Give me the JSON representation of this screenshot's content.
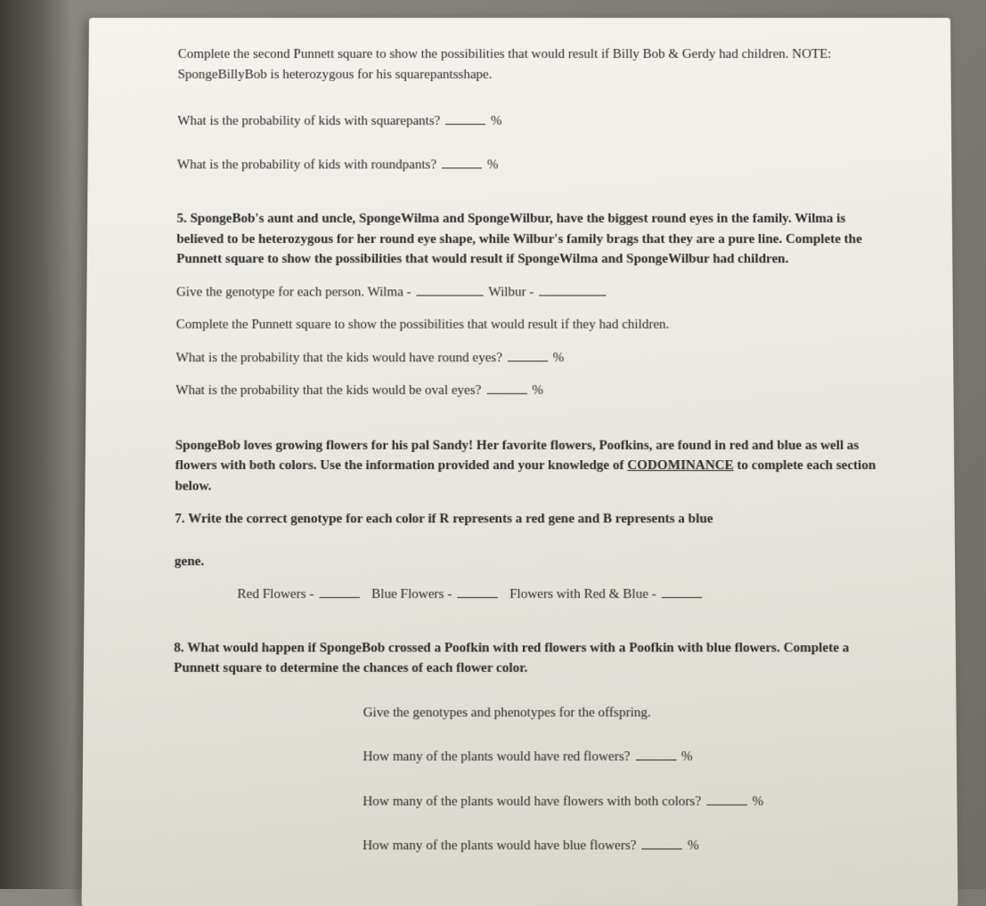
{
  "intro": {
    "text": "Complete the second Punnett square to show the possibilities that would result if Billy Bob & Gerdy had children. NOTE: SpongeBillyBob is heterozygous for his squarepantsshape."
  },
  "q_squarepants": {
    "text": "What is the probability of kids with squarepants?",
    "suffix": "%"
  },
  "q_roundpants": {
    "text": "What is the probability of kids with roundpants?",
    "suffix": "%"
  },
  "q5": {
    "text": "5. SpongeBob's aunt and uncle, SpongeWilma and SpongeWilbur, have the biggest round eyes in the family. Wilma is believed to be heterozygous for her round eye shape, while Wilbur's family brags that they are a pure line. Complete the Punnett square to show the possibilities that would result if SpongeWilma and SpongeWilbur had children."
  },
  "genotype": {
    "prefix": "Give the genotype for each person. Wilma -",
    "mid": "Wilbur -"
  },
  "complete_punnett": {
    "text": "Complete the Punnett square to show the possibilities that would result if they had children."
  },
  "q_roundeyes": {
    "text": "What is the probability that the kids would have round eyes?",
    "suffix": "%"
  },
  "q_ovaleyes": {
    "text": "What is the probability that the kids would be oval eyes?",
    "suffix": "%"
  },
  "codominance_intro": {
    "part1": "SpongeBob loves growing flowers for his pal Sandy! Her favorite flowers, Poofkins, are found in red and blue as well as flowers with both colors. Use the information provided and your knowledge of ",
    "underlined": "CODOMINANCE",
    "part2": " to complete each section below."
  },
  "q7": {
    "text": "7. Write the correct genotype for each color if R represents a red gene and B represents a blue"
  },
  "gene_label": "gene.",
  "flowers": {
    "red": "Red Flowers -",
    "blue": "Blue Flowers -",
    "both": "Flowers with Red & Blue -"
  },
  "q8": {
    "text": "8. What would happen if SpongeBob crossed a Poofkin with red flowers with a Poofkin with blue flowers.  Complete a Punnett square to determine the chances of each flower color."
  },
  "offspring": {
    "text": "Give the genotypes and phenotypes for the offspring."
  },
  "red_flowers_q": {
    "text": "How many of the plants would have red flowers?",
    "suffix": "%"
  },
  "both_flowers_q": {
    "text": "How many of the plants would have flowers with both colors?",
    "suffix": "%"
  },
  "blue_flowers_q": {
    "text": "How many of the plants would have blue flowers?",
    "suffix": "%"
  }
}
